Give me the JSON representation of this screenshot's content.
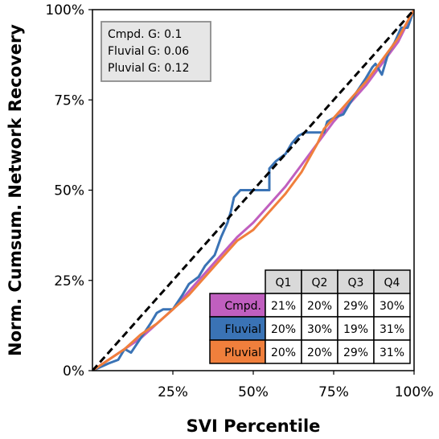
{
  "chart_data": {
    "type": "line",
    "xlabel": "SVI Percentile",
    "ylabel": "Norm. Cumsum. Network Recovery",
    "xlim": [
      0,
      100
    ],
    "ylim": [
      0,
      100
    ],
    "x_ticks": [
      25,
      50,
      75,
      100
    ],
    "x_tick_labels": [
      "25%",
      "50%",
      "75%",
      "100%"
    ],
    "y_ticks": [
      0,
      25,
      50,
      75,
      100
    ],
    "y_tick_labels": [
      "0%",
      "25%",
      "50%",
      "75%",
      "100%"
    ],
    "grid": false,
    "reference_line": {
      "style": "dashed",
      "color": "#000000",
      "points": [
        [
          0,
          0
        ],
        [
          100,
          100
        ]
      ]
    },
    "series": [
      {
        "name": "Cmpd.",
        "color": "#c05fbf",
        "points": [
          [
            0,
            0
          ],
          [
            5,
            3
          ],
          [
            10,
            6
          ],
          [
            15,
            9
          ],
          [
            20,
            13
          ],
          [
            25,
            17
          ],
          [
            30,
            22
          ],
          [
            35,
            27
          ],
          [
            40,
            32
          ],
          [
            45,
            37
          ],
          [
            50,
            41
          ],
          [
            55,
            46
          ],
          [
            60,
            51
          ],
          [
            65,
            57
          ],
          [
            70,
            63
          ],
          [
            75,
            69
          ],
          [
            80,
            74
          ],
          [
            85,
            79
          ],
          [
            90,
            85
          ],
          [
            95,
            91
          ],
          [
            100,
            100
          ]
        ]
      },
      {
        "name": "Fluvial",
        "color": "#3a73b5",
        "points": [
          [
            0,
            0
          ],
          [
            5,
            2
          ],
          [
            8,
            3
          ],
          [
            10,
            6
          ],
          [
            12,
            5
          ],
          [
            15,
            9
          ],
          [
            18,
            13
          ],
          [
            20,
            16
          ],
          [
            22,
            17
          ],
          [
            25,
            17
          ],
          [
            28,
            21
          ],
          [
            30,
            24
          ],
          [
            33,
            26
          ],
          [
            35,
            29
          ],
          [
            38,
            32
          ],
          [
            40,
            37
          ],
          [
            42,
            41
          ],
          [
            43,
            44
          ],
          [
            44,
            48
          ],
          [
            46,
            50
          ],
          [
            49,
            50
          ],
          [
            52,
            50
          ],
          [
            55,
            50
          ],
          [
            55,
            56
          ],
          [
            57,
            58
          ],
          [
            60,
            60
          ],
          [
            62,
            63
          ],
          [
            64,
            65
          ],
          [
            66,
            66
          ],
          [
            68,
            66
          ],
          [
            70,
            66
          ],
          [
            72,
            66
          ],
          [
            73,
            69
          ],
          [
            75,
            70
          ],
          [
            78,
            71
          ],
          [
            80,
            74
          ],
          [
            82,
            77
          ],
          [
            85,
            81
          ],
          [
            87,
            84
          ],
          [
            88,
            85
          ],
          [
            90,
            82
          ],
          [
            92,
            88
          ],
          [
            94,
            91
          ],
          [
            96,
            95
          ],
          [
            98,
            95
          ],
          [
            100,
            100
          ]
        ]
      },
      {
        "name": "Pluvial",
        "color": "#f07f3c",
        "points": [
          [
            0,
            0
          ],
          [
            5,
            3
          ],
          [
            10,
            6
          ],
          [
            15,
            10
          ],
          [
            20,
            13
          ],
          [
            25,
            17
          ],
          [
            30,
            21
          ],
          [
            35,
            26
          ],
          [
            40,
            31
          ],
          [
            45,
            36
          ],
          [
            50,
            39
          ],
          [
            55,
            44
          ],
          [
            60,
            49
          ],
          [
            65,
            55
          ],
          [
            70,
            63
          ],
          [
            72,
            67
          ],
          [
            75,
            70
          ],
          [
            80,
            75
          ],
          [
            85,
            80
          ],
          [
            90,
            86
          ],
          [
            95,
            92
          ],
          [
            100,
            100
          ]
        ]
      }
    ],
    "gini_box": [
      {
        "label": "Cmpd. G: 0.1"
      },
      {
        "label": "Fluvial G: 0.06"
      },
      {
        "label": "Pluvial G: 0.12"
      }
    ],
    "table": {
      "columns": [
        "Q1",
        "Q2",
        "Q3",
        "Q4"
      ],
      "rows": [
        {
          "label": "Cmpd.",
          "color": "#c05fbf",
          "values": [
            "21%",
            "20%",
            "29%",
            "30%"
          ]
        },
        {
          "label": "Fluvial",
          "color": "#3a73b5",
          "values": [
            "20%",
            "30%",
            "19%",
            "31%"
          ]
        },
        {
          "label": "Pluvial",
          "color": "#f07f3c",
          "values": [
            "20%",
            "20%",
            "29%",
            "31%"
          ]
        }
      ]
    }
  }
}
